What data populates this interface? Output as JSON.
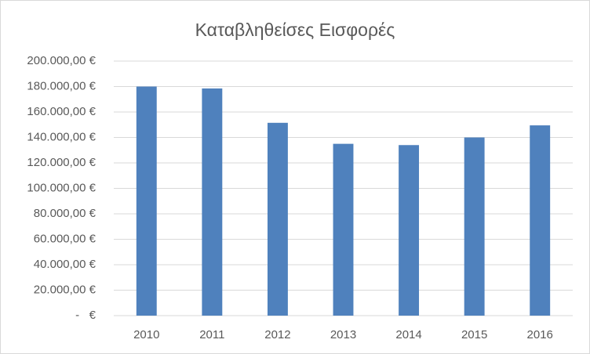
{
  "chart_data": {
    "type": "bar",
    "title": "Καταβληθείσες Εισφορές",
    "categories": [
      "2010",
      "2011",
      "2012",
      "2013",
      "2014",
      "2015",
      "2016"
    ],
    "values": [
      180000,
      178500,
      151500,
      135000,
      134000,
      140000,
      149500
    ],
    "color": "#4f81bd",
    "ylim": [
      0,
      200000
    ],
    "yticks": [
      {
        "value": 0,
        "label": "-   €"
      },
      {
        "value": 20000,
        "label": "20.000,00 €"
      },
      {
        "value": 40000,
        "label": "40.000,00 €"
      },
      {
        "value": 60000,
        "label": "60.000,00 €"
      },
      {
        "value": 80000,
        "label": "80.000,00 €"
      },
      {
        "value": 100000,
        "label": "100.000,00 €"
      },
      {
        "value": 120000,
        "label": "120.000,00 €"
      },
      {
        "value": 140000,
        "label": "140.000,00 €"
      },
      {
        "value": 160000,
        "label": "160.000,00 €"
      },
      {
        "value": 180000,
        "label": "180.000,00 €"
      },
      {
        "value": 200000,
        "label": "200.000,00 €"
      }
    ],
    "grid": true
  }
}
